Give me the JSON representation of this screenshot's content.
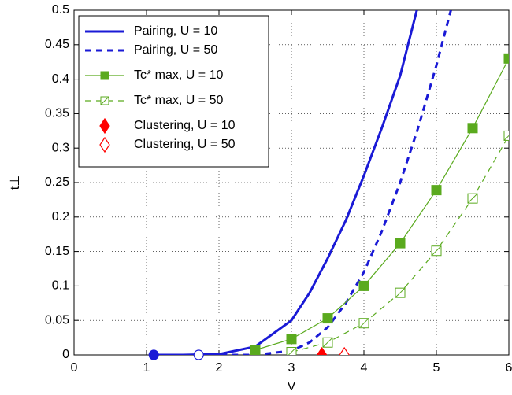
{
  "chart_data": {
    "type": "line",
    "xlabel": "V",
    "ylabel": "t⊥",
    "xlim": [
      0,
      6
    ],
    "xticks": [
      0,
      1,
      2,
      3,
      4,
      5,
      6
    ],
    "ylim": [
      0,
      0.5
    ],
    "yticks": [
      0,
      0.05,
      0.1,
      0.15,
      0.2,
      0.25,
      0.3,
      0.35,
      0.4,
      0.45,
      0.5
    ],
    "grid": true,
    "legend": "upper left",
    "series": [
      {
        "name": "Pairing, U = 10",
        "color": "#1a1ad6",
        "style": "solid",
        "marker": "none",
        "start_marker": "circle",
        "filled": true,
        "x": [
          1.1,
          1.5,
          2,
          2.5,
          3,
          3.25,
          3.5,
          3.75,
          4,
          4.25,
          4.5,
          4.73
        ],
        "values": [
          0,
          0,
          0.001,
          0.012,
          0.05,
          0.09,
          0.14,
          0.195,
          0.26,
          0.33,
          0.405,
          0.5
        ]
      },
      {
        "name": "Pairing, U = 50",
        "color": "#1a1ad6",
        "style": "dashed",
        "marker": "none",
        "start_marker": "circle",
        "filled": false,
        "x": [
          1.72,
          2,
          2.5,
          3,
          3.25,
          3.5,
          3.75,
          4,
          4.25,
          4.5,
          4.75,
          5,
          5.2
        ],
        "values": [
          0,
          0,
          0,
          0.006,
          0.018,
          0.04,
          0.075,
          0.12,
          0.18,
          0.25,
          0.33,
          0.42,
          0.5
        ]
      },
      {
        "name": "Tc* max, U = 10",
        "color": "#5aaa1e",
        "style": "solid",
        "marker": "square",
        "filled": true,
        "x": [
          2.5,
          3,
          3.5,
          4,
          4.5,
          5,
          5.5,
          6
        ],
        "values": [
          0.007,
          0.023,
          0.053,
          0.1,
          0.162,
          0.239,
          0.329,
          0.43
        ]
      },
      {
        "name": "Tc* max, U = 50",
        "color": "#5aaa1e",
        "style": "dashed",
        "marker": "square",
        "filled": false,
        "x": [
          3,
          3.5,
          4,
          4.5,
          5,
          5.5,
          6
        ],
        "values": [
          0.004,
          0.018,
          0.046,
          0.09,
          0.151,
          0.227,
          0.318
        ]
      },
      {
        "name": "Clustering, U = 10",
        "color": "#ff0000",
        "style": "none",
        "marker": "diamond",
        "filled": true,
        "x": [
          3.42
        ],
        "values": [
          0
        ]
      },
      {
        "name": "Clustering, U = 50",
        "color": "#ff0000",
        "style": "none",
        "marker": "diamond",
        "filled": false,
        "x": [
          3.73
        ],
        "values": [
          0
        ]
      }
    ]
  }
}
